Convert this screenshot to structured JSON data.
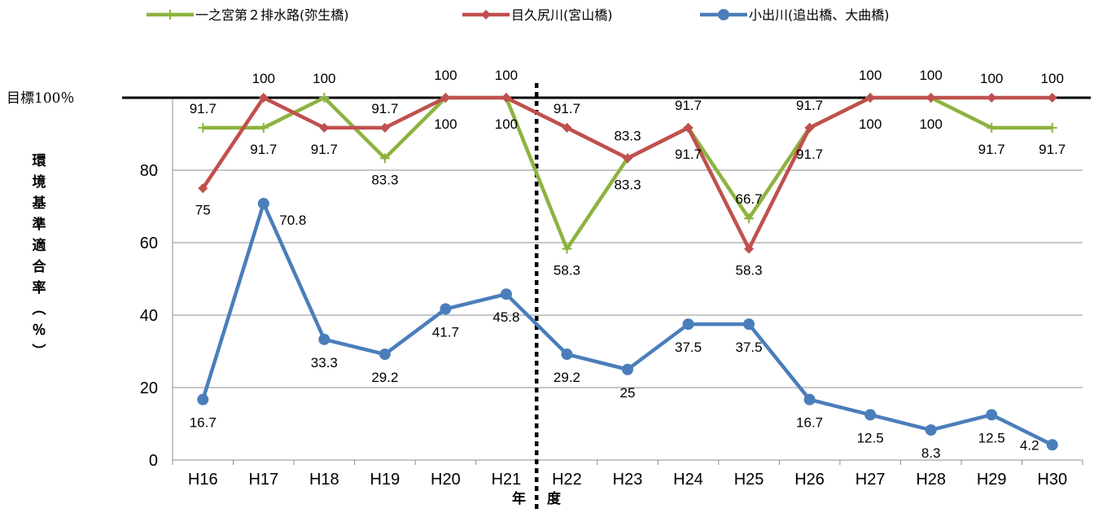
{
  "chart_data": {
    "type": "line",
    "categories": [
      "H16",
      "H17",
      "H18",
      "H19",
      "H20",
      "H21",
      "H22",
      "H23",
      "H24",
      "H25",
      "H26",
      "H27",
      "H28",
      "H29",
      "H30"
    ],
    "series": [
      {
        "name": "一之宮第２排水路(弥生橋)",
        "color": "#8db33f",
        "marker": "plus",
        "values": [
          91.7,
          91.7,
          100,
          83.3,
          100,
          100,
          58.3,
          83.3,
          91.7,
          66.7,
          91.7,
          100,
          100,
          91.7,
          91.7
        ]
      },
      {
        "name": "目久尻川(宮山橋)",
        "color": "#c0504d",
        "marker": "diamond",
        "values": [
          75,
          100,
          91.7,
          91.7,
          100,
          100,
          91.7,
          83.3,
          91.7,
          58.3,
          91.7,
          100,
          100,
          100,
          100
        ]
      },
      {
        "name": "小出川(追出橋、大曲橋)",
        "color": "#4a7ebb",
        "marker": "circle",
        "values": [
          16.7,
          70.8,
          33.3,
          29.2,
          41.7,
          45.8,
          29.2,
          25,
          37.5,
          37.5,
          16.7,
          12.5,
          8.3,
          12.5,
          4.2
        ]
      }
    ],
    "y_ticks": [
      "0",
      "20",
      "40",
      "60",
      "80"
    ],
    "ylim": [
      0,
      100
    ],
    "ylabel": "環境基準適合率（％）",
    "xlabel_left": "年",
    "xlabel_right": "度",
    "target_label": "目標100％",
    "target_value": 100,
    "divider_between": [
      "H21",
      "H22"
    ],
    "grid": true,
    "legend": "top"
  }
}
